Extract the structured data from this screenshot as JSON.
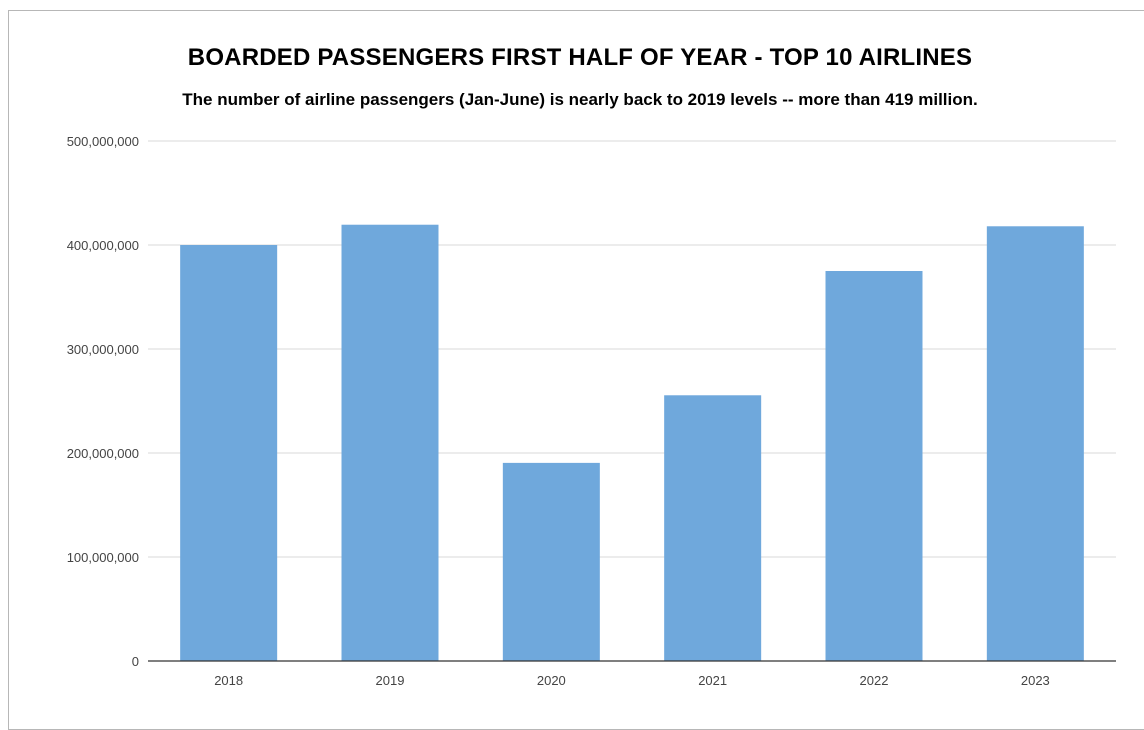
{
  "chart_data": {
    "type": "bar",
    "title": "BOARDED PASSENGERS FIRST HALF OF YEAR - TOP 10 AIRLINES",
    "subtitle": "The number of airline passengers (Jan-June) is nearly back to 2019 levels -- more than 419 million.",
    "xlabel": "",
    "ylabel": "",
    "categories": [
      "2018",
      "2019",
      "2020",
      "2021",
      "2022",
      "2023"
    ],
    "values": [
      400000000,
      419500000,
      190500000,
      255500000,
      375000000,
      418000000
    ],
    "ylim": [
      0,
      500000000
    ],
    "yticks": [
      0,
      100000000,
      200000000,
      300000000,
      400000000,
      500000000
    ],
    "ytick_labels": [
      "0",
      "100,000,000",
      "200,000,000",
      "300,000,000",
      "400,000,000",
      "500,000,000"
    ],
    "grid": true,
    "legend": "none",
    "bar_color": "#6fa8dc",
    "grid_color": "#d9d9d9",
    "axis_color": "#333333"
  }
}
